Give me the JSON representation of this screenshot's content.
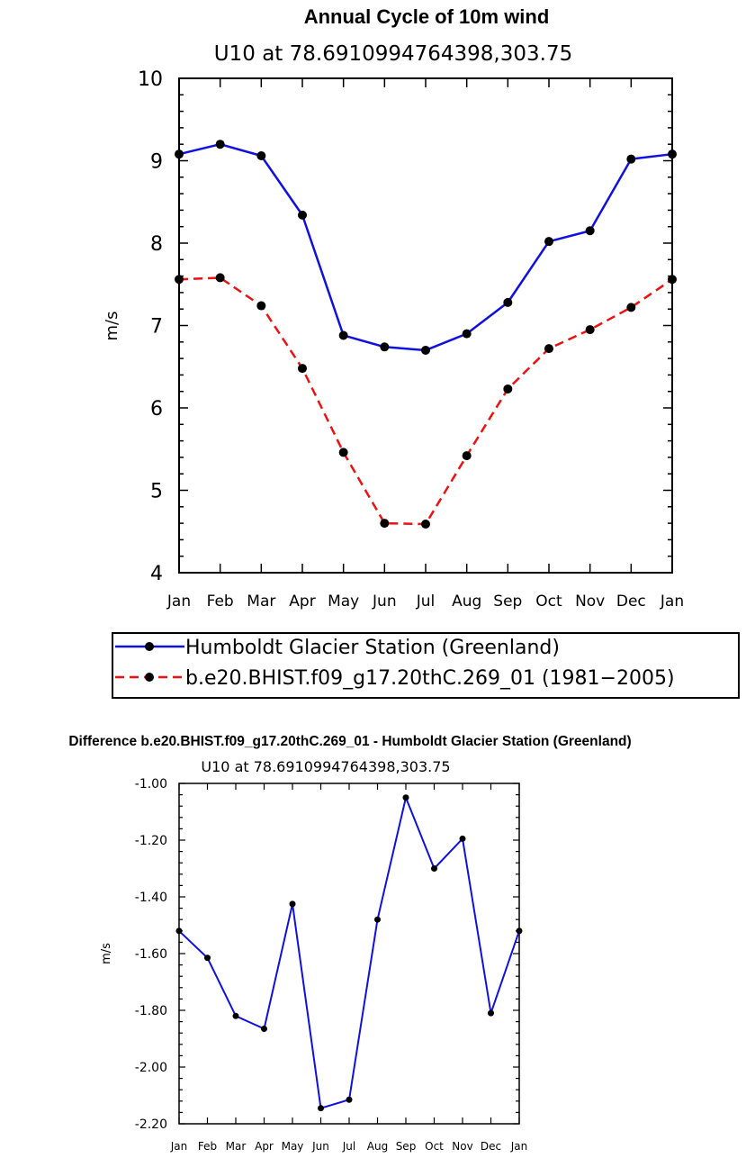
{
  "chart_data": [
    {
      "type": "line",
      "title": "Annual Cycle of 10m wind",
      "subtitle": "U10 at 78.6910994764398,303.75",
      "xlabel": "",
      "ylabel": "m/s",
      "ylim": [
        4,
        10
      ],
      "yticks": [
        "4",
        "5",
        "6",
        "7",
        "8",
        "9",
        "10"
      ],
      "categories": [
        "Jan",
        "Feb",
        "Mar",
        "Apr",
        "May",
        "Jun",
        "Jul",
        "Aug",
        "Sep",
        "Oct",
        "Nov",
        "Dec",
        "Jan"
      ],
      "series": [
        {
          "name": "Humboldt Glacier Station (Greenland)",
          "color": "#1010e0",
          "style": "solid",
          "values": [
            9.08,
            9.2,
            9.06,
            8.34,
            6.88,
            6.74,
            6.7,
            6.9,
            7.28,
            8.02,
            8.15,
            9.02,
            9.08
          ]
        },
        {
          "name": "b.e20.BHIST.f09_g17.20thC.269_01 (1981−2005)",
          "color": "#ee1111",
          "style": "dashed",
          "values": [
            7.56,
            7.58,
            7.24,
            6.48,
            5.46,
            4.6,
            4.59,
            5.42,
            6.23,
            6.72,
            6.95,
            7.22,
            7.56
          ]
        }
      ],
      "legend": "bottom"
    },
    {
      "type": "line",
      "title": "Difference b.e20.BHIST.f09_g17.20thC.269_01 - Humboldt Glacier Station (Greenland)",
      "subtitle": "U10 at 78.6910994764398,303.75",
      "xlabel": "",
      "ylabel": "m/s",
      "ylim": [
        -2.2,
        -1.0
      ],
      "yticks": [
        "-2.20",
        "-2.00",
        "-1.80",
        "-1.60",
        "-1.40",
        "-1.20",
        "-1.00"
      ],
      "categories": [
        "Jan",
        "Feb",
        "Mar",
        "Apr",
        "May",
        "Jun",
        "Jul",
        "Aug",
        "Sep",
        "Oct",
        "Nov",
        "Dec",
        "Jan"
      ],
      "series": [
        {
          "name": "difference",
          "color": "#1010e0",
          "style": "solid",
          "values": [
            -1.52,
            -1.615,
            -1.82,
            -1.865,
            -1.425,
            -2.145,
            -2.115,
            -1.48,
            -1.05,
            -1.3,
            -1.195,
            -1.81,
            -1.52
          ]
        }
      ]
    }
  ]
}
